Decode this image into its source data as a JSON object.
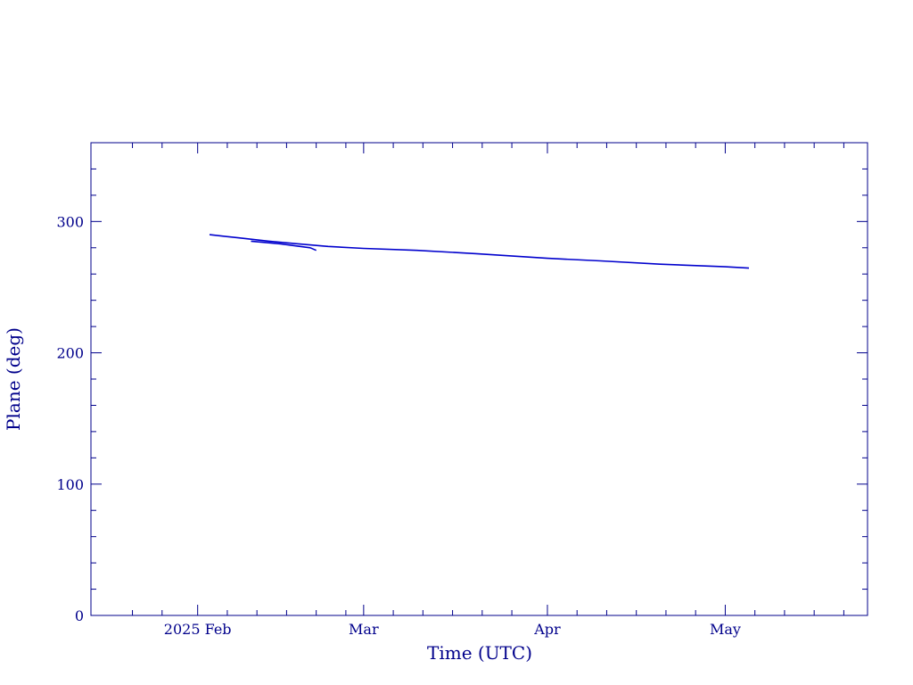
{
  "chart_data": {
    "type": "line",
    "title": "",
    "xlabel": "Time (UTC)",
    "ylabel": "Plane (deg)",
    "xlim": [
      "2025-01-14",
      "2025-05-25"
    ],
    "ylim": [
      0,
      360
    ],
    "x_ticks": [
      {
        "date": "2025-02-01",
        "label": "2025 Feb"
      },
      {
        "date": "2025-03-01",
        "label": "Mar"
      },
      {
        "date": "2025-04-01",
        "label": "Apr"
      },
      {
        "date": "2025-05-01",
        "label": "May"
      }
    ],
    "x_minor_ticks": [
      "2025-01-21",
      "2025-01-26",
      "2025-02-06",
      "2025-02-11",
      "2025-02-16",
      "2025-02-21",
      "2025-02-26",
      "2025-03-06",
      "2025-03-11",
      "2025-03-16",
      "2025-03-21",
      "2025-03-26",
      "2025-04-06",
      "2025-04-11",
      "2025-04-16",
      "2025-04-21",
      "2025-04-26",
      "2025-05-06",
      "2025-05-11",
      "2025-05-16",
      "2025-05-21"
    ],
    "y_ticks": [
      0,
      100,
      200,
      300
    ],
    "y_minor_step": 20,
    "grid": false,
    "colors": {
      "axis": "#00008b",
      "line": "#0000cd"
    },
    "series": [
      {
        "values": [
          [
            "2025-02-03",
            290
          ],
          [
            "2025-02-08",
            287.5
          ],
          [
            "2025-02-13",
            285
          ],
          [
            "2025-02-18",
            283
          ],
          [
            "2025-02-23",
            281
          ],
          [
            "2025-03-01",
            279.5
          ],
          [
            "2025-03-10",
            278
          ],
          [
            "2025-03-20",
            275.5
          ],
          [
            "2025-04-01",
            272
          ],
          [
            "2025-04-10",
            270
          ],
          [
            "2025-04-20",
            267.5
          ],
          [
            "2025-05-01",
            265.5
          ],
          [
            "2025-05-05",
            264.5
          ]
        ]
      },
      {
        "values": [
          [
            "2025-02-10",
            285
          ],
          [
            "2025-02-15",
            283
          ],
          [
            "2025-02-20",
            280
          ],
          [
            "2025-02-21",
            278
          ]
        ]
      }
    ]
  }
}
